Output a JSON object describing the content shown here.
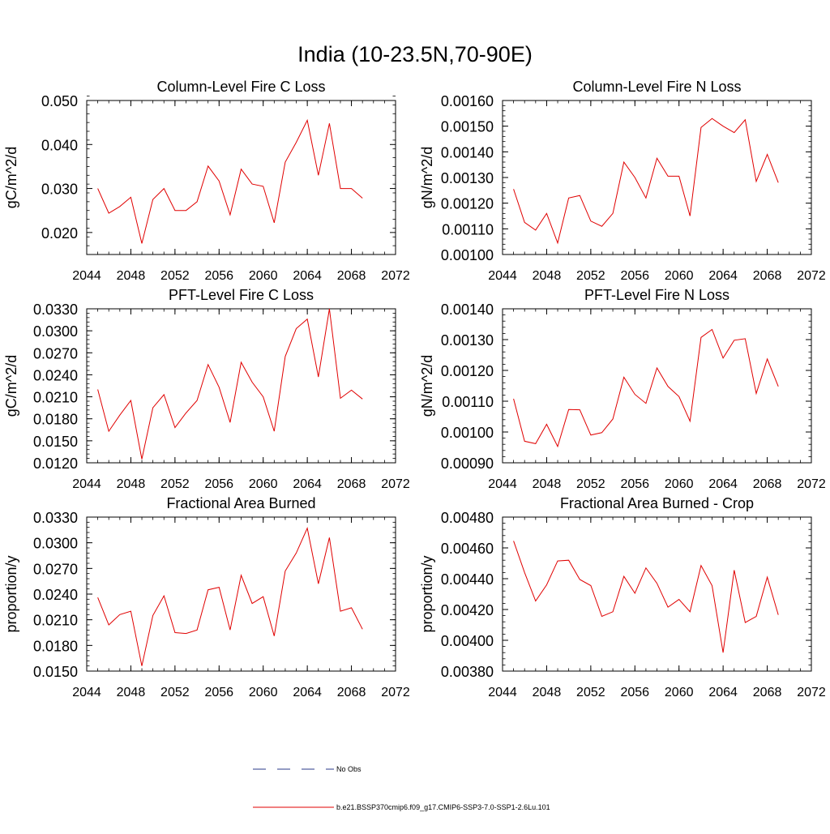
{
  "figure_title": "India (10-23.5N,70-90E)",
  "legend": {
    "obs_label": "No Obs",
    "obs_color": "#2a3a8a",
    "model_label": "b.e21.BSSP370cmip6.f09_g17.CMIP6-SSP3-7.0-SSP1-2.6Lu.101",
    "model_color": "#e00000"
  },
  "chart_data": [
    {
      "type": "line",
      "title": "Column-Level Fire C Loss",
      "ylabel": "gC/m^2/d",
      "xlim": [
        2044,
        2072
      ],
      "ylim": [
        0.015,
        0.05
      ],
      "xticks": [
        "2044",
        "2048",
        "2052",
        "2056",
        "2060",
        "2064",
        "2068",
        "2072"
      ],
      "yticks": [
        "0.020",
        "0.030",
        "0.040",
        "0.050"
      ],
      "series": [
        {
          "x": [
            2045,
            2046,
            2047,
            2048,
            2049,
            2050,
            2051,
            2052,
            2053,
            2054,
            2055,
            2056,
            2057,
            2058,
            2059,
            2060,
            2061,
            2062,
            2063,
            2064,
            2065,
            2066,
            2067,
            2068,
            2069
          ],
          "values": [
            0.03,
            0.0244,
            0.0259,
            0.028,
            0.0175,
            0.0275,
            0.03,
            0.025,
            0.025,
            0.027,
            0.0351,
            0.0317,
            0.024,
            0.0344,
            0.031,
            0.0305,
            0.0222,
            0.036,
            0.0405,
            0.0455,
            0.033,
            0.0448,
            0.03,
            0.03,
            0.0278
          ]
        }
      ]
    },
    {
      "type": "line",
      "title": "Column-Level Fire N Loss",
      "ylabel": "gN/m^2/d",
      "xlim": [
        2044,
        2072
      ],
      "ylim": [
        0.001,
        0.0016
      ],
      "xticks": [
        "2044",
        "2048",
        "2052",
        "2056",
        "2060",
        "2064",
        "2068",
        "2072"
      ],
      "yticks": [
        "0.00100",
        "0.00110",
        "0.00120",
        "0.00130",
        "0.00140",
        "0.00150",
        "0.00160"
      ],
      "series": [
        {
          "x": [
            2045,
            2046,
            2047,
            2048,
            2049,
            2050,
            2051,
            2052,
            2053,
            2054,
            2055,
            2056,
            2057,
            2058,
            2059,
            2060,
            2061,
            2062,
            2063,
            2064,
            2065,
            2066,
            2067,
            2068,
            2069
          ],
          "values": [
            0.001255,
            0.001125,
            0.001095,
            0.00116,
            0.001045,
            0.00122,
            0.00123,
            0.00113,
            0.00111,
            0.00116,
            0.00136,
            0.0013,
            0.00122,
            0.001375,
            0.001305,
            0.001305,
            0.00115,
            0.001495,
            0.00153,
            0.0015,
            0.001475,
            0.001525,
            0.001285,
            0.00139,
            0.00128
          ]
        }
      ]
    },
    {
      "type": "line",
      "title": "PFT-Level Fire C Loss",
      "ylabel": "gC/m^2/d",
      "xlim": [
        2044,
        2072
      ],
      "ylim": [
        0.012,
        0.033
      ],
      "xticks": [
        "2044",
        "2048",
        "2052",
        "2056",
        "2060",
        "2064",
        "2068",
        "2072"
      ],
      "yticks": [
        "0.0120",
        "0.0150",
        "0.0180",
        "0.0210",
        "0.0240",
        "0.0270",
        "0.0300",
        "0.0330"
      ],
      "series": [
        {
          "x": [
            2045,
            2046,
            2047,
            2048,
            2049,
            2050,
            2051,
            2052,
            2053,
            2054,
            2055,
            2056,
            2057,
            2058,
            2059,
            2060,
            2061,
            2062,
            2063,
            2064,
            2065,
            2066,
            2067,
            2068,
            2069
          ],
          "values": [
            0.022,
            0.0163,
            0.0185,
            0.0205,
            0.0125,
            0.0195,
            0.0213,
            0.0168,
            0.0188,
            0.0205,
            0.0254,
            0.0223,
            0.0175,
            0.0257,
            0.023,
            0.021,
            0.0163,
            0.0265,
            0.0303,
            0.0316,
            0.0237,
            0.033,
            0.0208,
            0.0219,
            0.0207
          ]
        }
      ]
    },
    {
      "type": "line",
      "title": "PFT-Level Fire N Loss",
      "ylabel": "gN/m^2/d",
      "xlim": [
        2044,
        2072
      ],
      "ylim": [
        0.0009,
        0.0014
      ],
      "xticks": [
        "2044",
        "2048",
        "2052",
        "2056",
        "2060",
        "2064",
        "2068",
        "2072"
      ],
      "yticks": [
        "0.00090",
        "0.00100",
        "0.00110",
        "0.00120",
        "0.00130",
        "0.00140"
      ],
      "series": [
        {
          "x": [
            2045,
            2046,
            2047,
            2048,
            2049,
            2050,
            2051,
            2052,
            2053,
            2054,
            2055,
            2056,
            2057,
            2058,
            2059,
            2060,
            2061,
            2062,
            2063,
            2064,
            2065,
            2066,
            2067,
            2068,
            2069
          ],
          "values": [
            0.001108,
            0.00097,
            0.000962,
            0.001025,
            0.000953,
            0.001073,
            0.001072,
            0.00099,
            0.000998,
            0.001042,
            0.001178,
            0.001122,
            0.001093,
            0.001208,
            0.001148,
            0.001115,
            0.001035,
            0.001307,
            0.001333,
            0.00124,
            0.001298,
            0.001303,
            0.001125,
            0.001237,
            0.001148
          ]
        }
      ]
    },
    {
      "type": "line",
      "title": "Fractional Area Burned",
      "ylabel": "proportion/y",
      "xlim": [
        2044,
        2072
      ],
      "ylim": [
        0.015,
        0.033
      ],
      "xticks": [
        "2044",
        "2048",
        "2052",
        "2056",
        "2060",
        "2064",
        "2068",
        "2072"
      ],
      "yticks": [
        "0.0150",
        "0.0180",
        "0.0210",
        "0.0240",
        "0.0270",
        "0.0300",
        "0.0330"
      ],
      "series": [
        {
          "x": [
            2045,
            2046,
            2047,
            2048,
            2049,
            2050,
            2051,
            2052,
            2053,
            2054,
            2055,
            2056,
            2057,
            2058,
            2059,
            2060,
            2061,
            2062,
            2063,
            2064,
            2065,
            2066,
            2067,
            2068,
            2069
          ],
          "values": [
            0.0236,
            0.0204,
            0.0216,
            0.022,
            0.0156,
            0.0215,
            0.0238,
            0.0195,
            0.0194,
            0.0198,
            0.0245,
            0.0248,
            0.0198,
            0.0262,
            0.0229,
            0.0237,
            0.0191,
            0.0267,
            0.0288,
            0.0317,
            0.0252,
            0.0306,
            0.022,
            0.0224,
            0.0199
          ]
        }
      ]
    },
    {
      "type": "line",
      "title": "Fractional Area Burned - Crop",
      "ylabel": "proportion/y",
      "xlim": [
        2044,
        2072
      ],
      "ylim": [
        0.0038,
        0.0048
      ],
      "xticks": [
        "2044",
        "2048",
        "2052",
        "2056",
        "2060",
        "2064",
        "2068",
        "2072"
      ],
      "yticks": [
        "0.00380",
        "0.00400",
        "0.00420",
        "0.00440",
        "0.00460",
        "0.00480"
      ],
      "series": [
        {
          "x": [
            2045,
            2046,
            2047,
            2048,
            2049,
            2050,
            2051,
            2052,
            2053,
            2054,
            2055,
            2056,
            2057,
            2058,
            2059,
            2060,
            2061,
            2062,
            2063,
            2064,
            2065,
            2066,
            2067,
            2068,
            2069
          ],
          "values": [
            0.004645,
            0.00444,
            0.004255,
            0.00436,
            0.004515,
            0.00452,
            0.004395,
            0.004355,
            0.004155,
            0.004185,
            0.004415,
            0.004305,
            0.00447,
            0.00437,
            0.004215,
            0.004265,
            0.004185,
            0.004485,
            0.004355,
            0.00392,
            0.004455,
            0.004115,
            0.004155,
            0.00441,
            0.004165
          ]
        }
      ]
    }
  ]
}
